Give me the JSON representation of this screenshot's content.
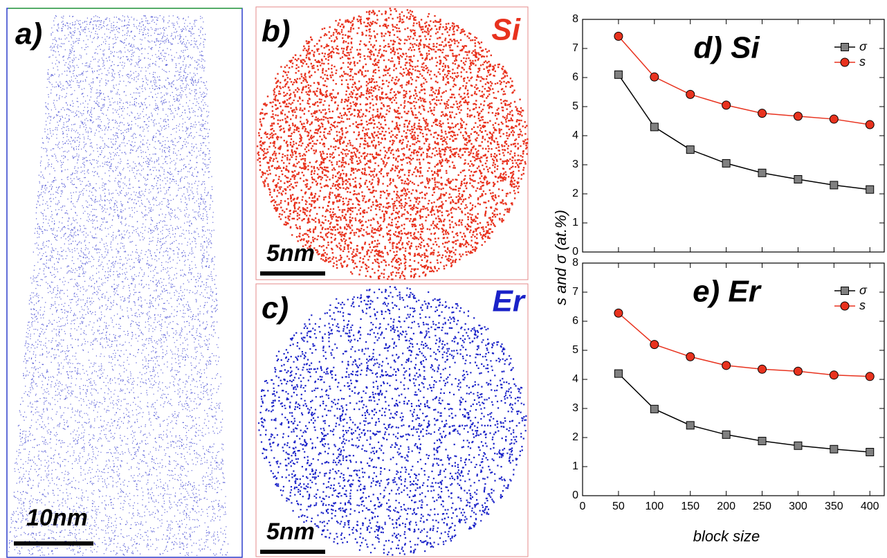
{
  "panels": [
    {
      "label": "a)",
      "scale_bar": "10nm"
    },
    {
      "label": "b)",
      "element": "Si",
      "scale_bar": "5nm"
    },
    {
      "label": "c)",
      "element": "Er",
      "scale_bar": "5nm"
    }
  ],
  "chart_data": [
    {
      "type": "line",
      "title": "d) Si",
      "ylabel": "s and σ (at.%)",
      "x": [
        50,
        100,
        150,
        200,
        250,
        300,
        350,
        400
      ],
      "series": [
        {
          "name": "σ",
          "color": "#808080",
          "values": [
            6.1,
            4.3,
            3.52,
            3.05,
            2.72,
            2.5,
            2.3,
            2.15
          ]
        },
        {
          "name": "s",
          "color": "#e8321e",
          "values": [
            7.42,
            6.02,
            5.42,
            5.05,
            4.77,
            4.67,
            4.57,
            4.38
          ]
        }
      ],
      "xlim": [
        0,
        420
      ],
      "xticks": [
        0,
        50,
        100,
        150,
        200,
        250,
        300,
        350,
        400
      ],
      "ylim": [
        0,
        8
      ],
      "yticks": [
        0,
        1,
        2,
        3,
        4,
        5,
        6,
        7,
        8
      ],
      "legend": "upper right"
    },
    {
      "type": "line",
      "title": "e) Er",
      "xlabel": "block size",
      "x": [
        50,
        100,
        150,
        200,
        250,
        300,
        350,
        400
      ],
      "series": [
        {
          "name": "σ",
          "color": "#808080",
          "values": [
            4.2,
            2.98,
            2.42,
            2.1,
            1.88,
            1.72,
            1.6,
            1.5
          ]
        },
        {
          "name": "s",
          "color": "#e8321e",
          "values": [
            6.28,
            5.2,
            4.78,
            4.48,
            4.35,
            4.28,
            4.15,
            4.1
          ]
        }
      ],
      "xlim": [
        0,
        420
      ],
      "xticks": [
        0,
        50,
        100,
        150,
        200,
        250,
        300,
        350,
        400
      ],
      "ylim": [
        0,
        8
      ],
      "yticks": [
        0,
        1,
        2,
        3,
        4,
        5,
        6,
        7,
        8
      ],
      "legend": "upper right"
    }
  ]
}
